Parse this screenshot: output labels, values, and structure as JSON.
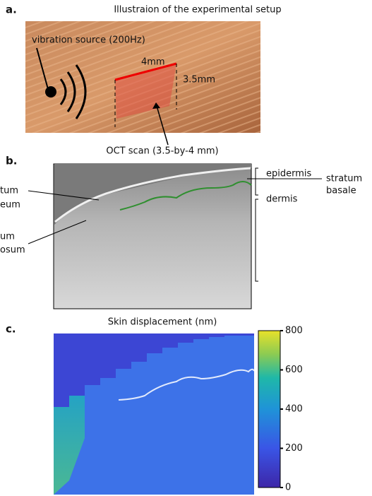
{
  "panels": [
    {
      "label": "a.",
      "title": "Illustraion of the experimental setup",
      "annotations": [
        "vibration source (200Hz)",
        "4mm",
        "3.5mm"
      ]
    },
    {
      "label": "b.",
      "title": "OCT scan (3.5-by-4 mm)",
      "annotations": [
        "epidermis",
        "stratum",
        "basale",
        "dermis",
        "tum",
        "eum",
        "um",
        "osum"
      ]
    },
    {
      "label": "c.",
      "title": "Skin displacement (nm)",
      "colorbar": {
        "lim": [
          0,
          800
        ],
        "ticks": [
          0,
          200,
          400,
          600,
          800
        ]
      }
    }
  ]
}
